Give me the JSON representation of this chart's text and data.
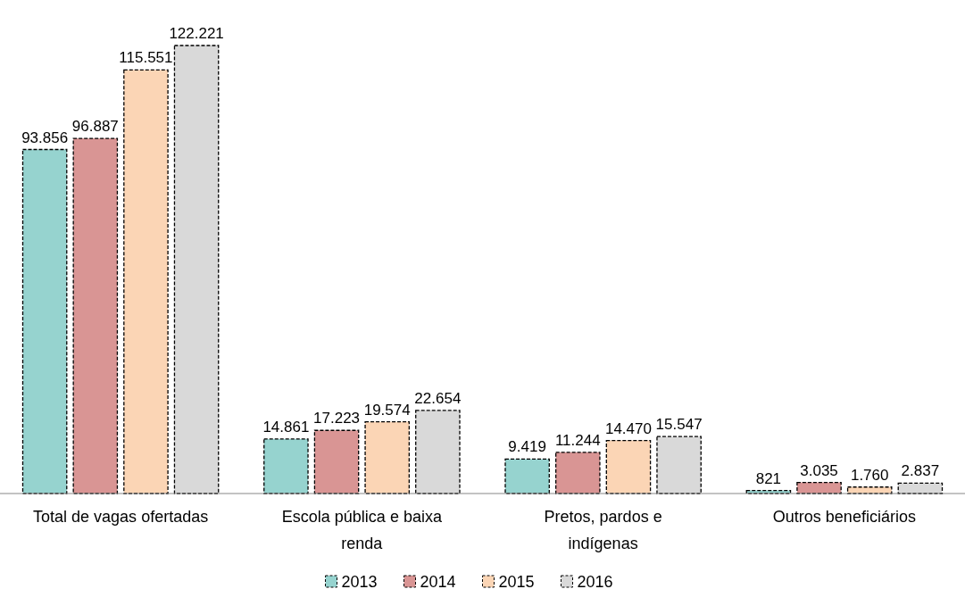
{
  "chart_data": {
    "type": "bar",
    "categories": [
      "Total de vagas ofertadas",
      "Escola pública e baixa renda",
      "Pretos, pardos e indígenas",
      "Outros beneficiários"
    ],
    "series": [
      {
        "name": "2013",
        "color": "#96d3cf",
        "values": [
          93856,
          14861,
          9419,
          821
        ],
        "value_labels": [
          "93.856",
          "14.861",
          "9.419",
          "821"
        ]
      },
      {
        "name": "2014",
        "color": "#d99594",
        "values": [
          96887,
          17223,
          11244,
          3035
        ],
        "value_labels": [
          "96.887",
          "17.223",
          "11.244",
          "3.035"
        ]
      },
      {
        "name": "2015",
        "color": "#fbd5b5",
        "values": [
          115551,
          19574,
          14470,
          1760
        ],
        "value_labels": [
          "115.551",
          "19.574",
          "14.470",
          "1.760"
        ]
      },
      {
        "name": "2016",
        "color": "#d9d9d9",
        "values": [
          122221,
          22654,
          15547,
          2837
        ],
        "value_labels": [
          "122.221",
          "22.654",
          "15.547",
          "2.837"
        ]
      }
    ],
    "legend": "bottom"
  }
}
